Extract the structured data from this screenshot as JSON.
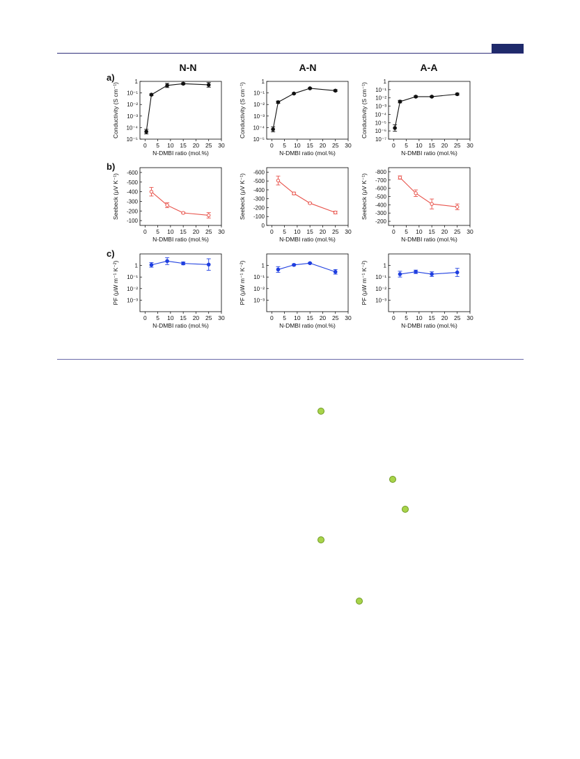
{
  "column_titles": [
    "N-N",
    "A-N",
    "A-A"
  ],
  "row_labels": [
    "a)",
    "b)",
    "c)"
  ],
  "x_axis_label": "N-DMBI ratio (mol.%)",
  "x_ticks": [
    "0",
    "5",
    "10",
    "15",
    "20",
    "25",
    "30"
  ],
  "y_labels": {
    "conductivity": "Conductivity (S cm⁻¹)",
    "seebeck": "Seebeck (μV K⁻¹)",
    "pf": "PF (μW m⁻¹ K⁻²)"
  },
  "colors": {
    "conductivity": "#111111",
    "seebeck": "#e8524a",
    "pf": "#1f3fe0",
    "rule": "#2e2e7a",
    "annotation_dot": "#a8d44a"
  },
  "chart_data": [
    {
      "id": "cond-NN",
      "type": "line",
      "log": true,
      "ylim": [
        -5,
        0
      ],
      "ytick_labels": [
        "1",
        "10⁻¹",
        "10⁻²",
        "10⁻³",
        "10⁻⁴",
        "10⁻⁵"
      ],
      "x": [
        0.5,
        2.5,
        8.7,
        15,
        25
      ],
      "y": [
        -4.35,
        -1.15,
        -0.35,
        -0.2,
        -0.3
      ],
      "err": [
        0.2,
        0.07,
        0.18,
        0.08,
        0.2
      ]
    },
    {
      "id": "cond-AN",
      "type": "line",
      "log": true,
      "ylim": [
        -5,
        0
      ],
      "ytick_labels": [
        "1",
        "10⁻¹",
        "10⁻²",
        "10⁻³",
        "10⁻⁴",
        "10⁻⁵"
      ],
      "x": [
        0.5,
        2.5,
        8.7,
        15,
        25
      ],
      "y": [
        -4.15,
        -1.8,
        -1.05,
        -0.6,
        -0.8
      ],
      "err": [
        0.22,
        0.1,
        0.06,
        0.05,
        0.08
      ]
    },
    {
      "id": "cond-AA",
      "type": "line",
      "log": true,
      "ylim": [
        -7,
        0
      ],
      "ytick_labels": [
        "1",
        "10⁻¹",
        "10⁻²",
        "10⁻³",
        "10⁻⁴",
        "10⁻⁵",
        "10⁻⁶",
        "10⁻⁷"
      ],
      "x": [
        0.5,
        2.5,
        8.7,
        15,
        25
      ],
      "y": [
        -5.65,
        -2.45,
        -1.85,
        -1.85,
        -1.55
      ],
      "err": [
        0.4,
        0.15,
        0.1,
        0.08,
        0.12
      ]
    },
    {
      "id": "seebeck-NN",
      "type": "line",
      "log": false,
      "ylim": [
        -50,
        -650
      ],
      "yticks": [
        -600,
        -500,
        -400,
        -300,
        -200,
        -100
      ],
      "ytick_labels": [
        "-600",
        "-500",
        "-400",
        "-300",
        "-200",
        "-100"
      ],
      "x": [
        2.5,
        8.7,
        15,
        25
      ],
      "y": [
        -400,
        -260,
        -180,
        -155
      ],
      "err": [
        45,
        25,
        8,
        28
      ]
    },
    {
      "id": "seebeck-AN",
      "type": "line",
      "log": false,
      "ylim": [
        0,
        -650
      ],
      "yticks": [
        -600,
        -500,
        -400,
        -300,
        -200,
        -100,
        0
      ],
      "ytick_labels": [
        "-600",
        "-500",
        "-400",
        "-300",
        "-200",
        "-100",
        "0"
      ],
      "x": [
        2.5,
        8.7,
        15,
        25
      ],
      "y": [
        -505,
        -360,
        -250,
        -145
      ],
      "err": [
        50,
        15,
        8,
        15
      ]
    },
    {
      "id": "seebeck-AA",
      "type": "line",
      "log": false,
      "ylim": [
        -150,
        -850
      ],
      "yticks": [
        -800,
        -700,
        -600,
        -500,
        -400,
        -300,
        -200
      ],
      "ytick_labels": [
        "-800",
        "-700",
        "-600",
        "-500",
        "-400",
        "-300",
        "-200"
      ],
      "x": [
        2.5,
        8.7,
        15,
        25
      ],
      "y": [
        -730,
        -540,
        -410,
        -375
      ],
      "err": [
        20,
        40,
        60,
        35
      ]
    },
    {
      "id": "pf-NN",
      "type": "line",
      "log": true,
      "ylim": [
        -4,
        1
      ],
      "ytick_labels": [
        "1",
        "10⁻¹",
        "10⁻²",
        "10⁻³"
      ],
      "tick_values": [
        0,
        -1,
        -2,
        -3
      ],
      "x": [
        2.5,
        8.7,
        15,
        25
      ],
      "y": [
        0.05,
        0.38,
        0.18,
        0.08
      ],
      "err": [
        0.2,
        0.3,
        0.12,
        0.5
      ]
    },
    {
      "id": "pf-AN",
      "type": "line",
      "log": true,
      "ylim": [
        -4,
        1
      ],
      "ytick_labels": [
        "1",
        "10⁻¹",
        "10⁻²",
        "10⁻³"
      ],
      "tick_values": [
        0,
        -1,
        -2,
        -3
      ],
      "x": [
        2.5,
        8.7,
        15,
        25
      ],
      "y": [
        -0.35,
        0.05,
        0.2,
        -0.55
      ],
      "err": [
        0.25,
        0.08,
        0.05,
        0.2
      ]
    },
    {
      "id": "pf-AA",
      "type": "line",
      "log": true,
      "ylim": [
        -4,
        1
      ],
      "ytick_labels": [
        "1",
        "10⁻¹",
        "10⁻²",
        "10⁻³"
      ],
      "tick_values": [
        0,
        -1,
        -2,
        -3
      ],
      "x": [
        2.5,
        8.7,
        15,
        25
      ],
      "y": [
        -0.75,
        -0.55,
        -0.75,
        -0.6
      ],
      "err": [
        0.25,
        0.15,
        0.2,
        0.35
      ]
    }
  ]
}
